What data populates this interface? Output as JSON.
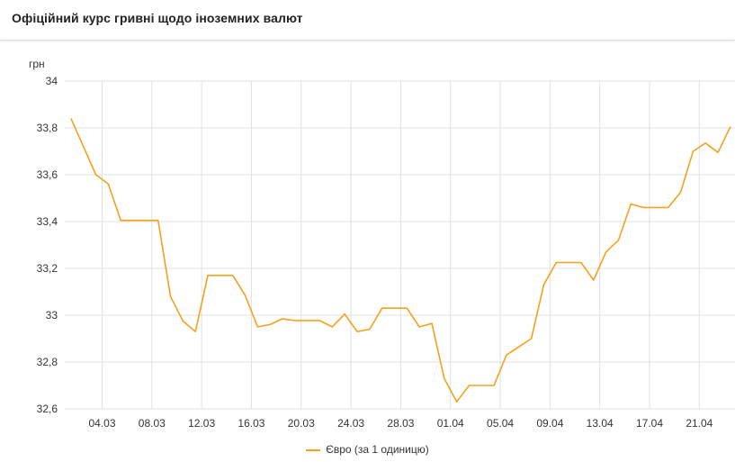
{
  "title": "Офіційний курс гривні щодо іноземних валют",
  "chart_data": {
    "type": "line",
    "ylabel": "грн",
    "ylim": [
      32.6,
      34
    ],
    "yticks": [
      "34",
      "33,8",
      "33,6",
      "33,4",
      "33,2",
      "33",
      "32,8",
      "32,6"
    ],
    "ytick_values": [
      34,
      33.8,
      33.6,
      33.4,
      33.2,
      33,
      32.8,
      32.6
    ],
    "xlim": [
      "01.03",
      "24.04"
    ],
    "xticks": [
      "04.03",
      "08.03",
      "12.03",
      "16.03",
      "20.03",
      "24.03",
      "28.03",
      "01.04",
      "05.04",
      "09.04",
      "13.04",
      "17.04",
      "21.04"
    ],
    "grid": true,
    "legend_position": "bottom",
    "series": [
      {
        "name": "Євро (за 1 одиницю)",
        "color": "#f4a21c",
        "x": [
          "01.03",
          "02.03",
          "03.03",
          "04.03",
          "05.03",
          "06.03",
          "07.03",
          "08.03",
          "09.03",
          "10.03",
          "11.03",
          "12.03",
          "13.03",
          "14.03",
          "15.03",
          "16.03",
          "17.03",
          "18.03",
          "19.03",
          "20.03",
          "21.03",
          "22.03",
          "23.03",
          "24.03",
          "25.03",
          "26.03",
          "27.03",
          "28.03",
          "29.03",
          "30.03",
          "31.03",
          "01.04",
          "02.04",
          "03.04",
          "04.04",
          "05.04",
          "06.04",
          "07.04",
          "08.04",
          "09.04",
          "10.04",
          "11.04",
          "12.04",
          "13.04",
          "14.04",
          "15.04",
          "16.04",
          "17.04",
          "18.04",
          "19.04",
          "20.04",
          "21.04",
          "22.04",
          "23.04"
        ],
        "values": [
          33.84,
          33.72,
          33.6,
          33.56,
          33.405,
          33.405,
          33.405,
          33.405,
          33.08,
          32.975,
          32.93,
          33.17,
          33.17,
          33.17,
          33.085,
          32.95,
          32.96,
          32.985,
          32.977,
          32.977,
          32.977,
          32.95,
          33.005,
          32.93,
          32.94,
          33.03,
          33.03,
          33.03,
          32.95,
          32.965,
          32.73,
          32.63,
          32.7,
          32.7,
          32.7,
          32.83,
          32.865,
          32.9,
          33.13,
          33.225,
          33.225,
          33.225,
          33.15,
          33.27,
          33.32,
          33.475,
          33.46,
          33.46,
          33.46,
          33.525,
          33.7,
          33.735,
          33.695,
          33.805
        ]
      }
    ]
  }
}
